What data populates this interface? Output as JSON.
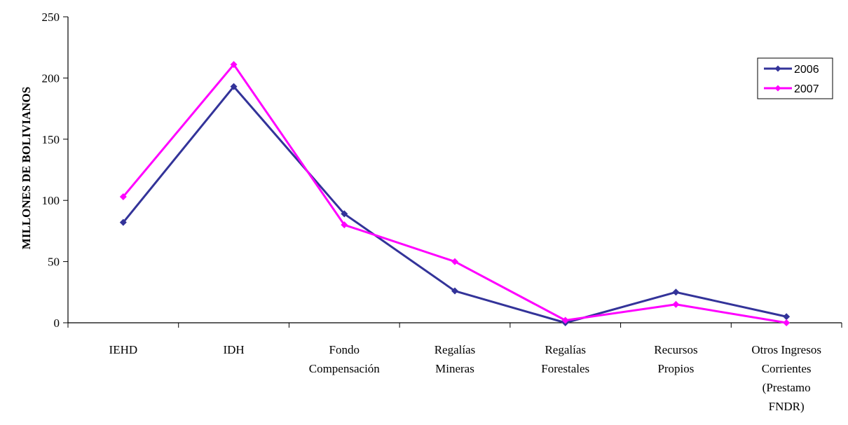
{
  "chart_data": {
    "type": "line",
    "title": "",
    "xlabel": "",
    "ylabel": "MILLONES DE BOLIVIANOS",
    "ylim": [
      0,
      250
    ],
    "yticks": [
      "0",
      "50",
      "100",
      "150",
      "200",
      "250"
    ],
    "grid": false,
    "legend_position": "top-right",
    "categories": [
      [
        "IEHD"
      ],
      [
        "IDH"
      ],
      [
        "Fondo",
        "Compensación"
      ],
      [
        "Regalías",
        "Mineras"
      ],
      [
        "Regalías",
        "Forestales"
      ],
      [
        "Recursos",
        "Propios"
      ],
      [
        "Otros Ingresos",
        "Corrientes",
        "(Prestamo",
        "FNDR)"
      ]
    ],
    "series": [
      {
        "name": "2006",
        "color": "#333399",
        "values": [
          82,
          193,
          89,
          26,
          0,
          25,
          5
        ]
      },
      {
        "name": "2007",
        "color": "#ff00ff",
        "values": [
          103,
          211,
          80,
          50,
          2,
          15,
          0
        ]
      }
    ]
  }
}
